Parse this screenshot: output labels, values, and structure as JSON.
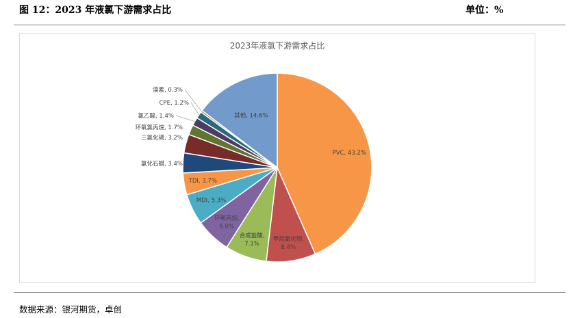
{
  "header": {
    "title": "图 12：2023 年液氯下游需求占比",
    "unit": "单位：%"
  },
  "chart_data": {
    "type": "pie",
    "title": "2023年液氯下游需求占比",
    "start_angle_deg": 0,
    "direction": "clockwise",
    "slices": [
      {
        "name": "PVC",
        "value": 43.2,
        "label": "PVC, 43.2%",
        "color": "#F79646"
      },
      {
        "name": "甲烷氯化物",
        "value": 8.4,
        "label": "甲烷氯化物, 8.4%",
        "color": "#C0504D"
      },
      {
        "name": "合成盐酸",
        "value": 7.1,
        "label": "合成盐酸, 7.1%",
        "color": "#9BBB59"
      },
      {
        "name": "环氧丙烷",
        "value": 6.0,
        "label": "环氧丙烷, 6.0%",
        "color": "#8064A2"
      },
      {
        "name": "MDI",
        "value": 5.3,
        "label": "MDI, 5.3%",
        "color": "#4BACC6"
      },
      {
        "name": "TDI",
        "value": 3.7,
        "label": "TDI, 3.7%",
        "color": "#F79646"
      },
      {
        "name": "氯化石蜡",
        "value": 3.4,
        "label": "氯化石蜡, 3.4%",
        "color": "#1F497D"
      },
      {
        "name": "三氯化磷",
        "value": 3.2,
        "label": "三氯化磷, 3.2%",
        "color": "#772C2A"
      },
      {
        "name": "环氧氯丙烷",
        "value": 1.7,
        "label": "环氧氯丙烷, 1.7%",
        "color": "#5F7530"
      },
      {
        "name": "氯乙酸",
        "value": 1.4,
        "label": "氯乙酸, 1.4%",
        "color": "#4D3B62"
      },
      {
        "name": "CPE",
        "value": 1.2,
        "label": "CPE, 1.2%",
        "color": "#276A7C"
      },
      {
        "name": "溴素",
        "value": 0.3,
        "label": "溴素, 0.3%",
        "color": "#B65708"
      },
      {
        "name": "其他",
        "value": 14.6,
        "label": "其他, 14.6%",
        "color": "#729ACA"
      }
    ]
  },
  "footer": {
    "source": "数据来源：银河期货，卓创"
  }
}
